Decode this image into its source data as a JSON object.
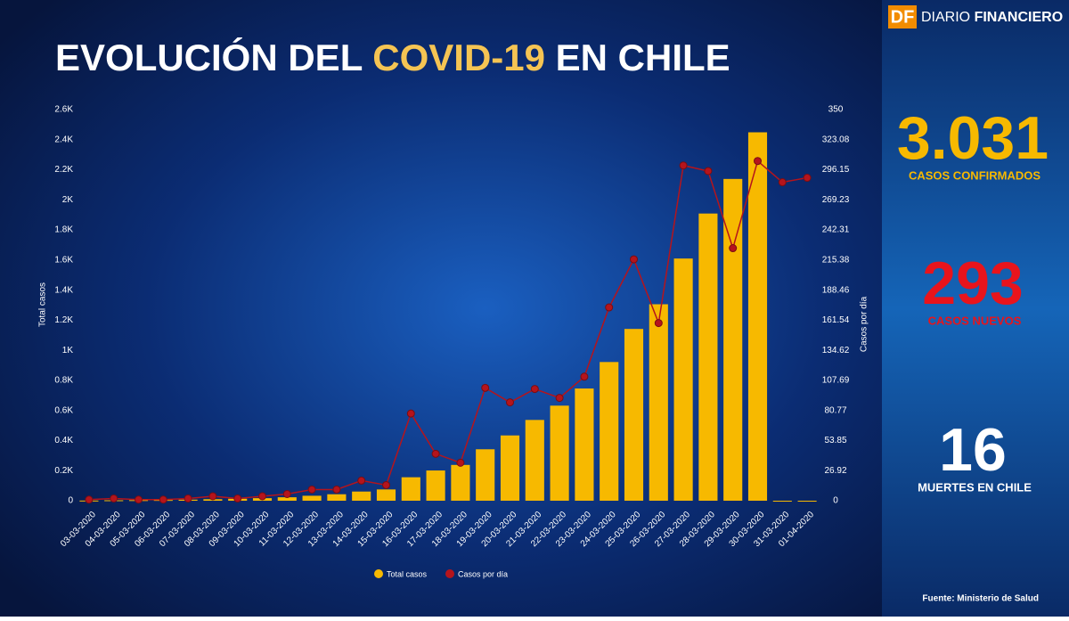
{
  "chart_data": {
    "type": "bar_line",
    "title": [
      "EVOLUCIÓN DEL ",
      "COVID-19",
      " EN CHILE"
    ],
    "y_label": "Total casos",
    "y2_label": "Casos por día",
    "categories": [
      "03-03-2020",
      "04-03-2020",
      "05-03-2020",
      "06-03-2020",
      "07-03-2020",
      "08-03-2020",
      "09-03-2020",
      "10-03-2020",
      "11-03-2020",
      "12-03-2020",
      "13-03-2020",
      "14-03-2020",
      "15-03-2020",
      "16-03-2020",
      "17-03-2020",
      "18-03-2020",
      "19-03-2020",
      "20-03-2020",
      "21-03-2020",
      "22-03-2020",
      "23-03-2020",
      "24-03-2020",
      "25-03-2020",
      "26-03-2020",
      "27-03-2020",
      "28-03-2020",
      "29-03-2020",
      "30-03-2020",
      "31-03-2020",
      "01-04-2020"
    ],
    "series": [
      {
        "name": "Total casos",
        "type": "bar",
        "color": "#f7b900",
        "values": [
          1,
          3,
          4,
          5,
          7,
          10,
          13,
          17,
          23,
          33,
          43,
          61,
          75,
          156,
          201,
          238,
          342,
          434,
          537,
          632,
          746,
          922,
          1142,
          1306,
          1610,
          1909,
          2139,
          2449,
          0,
          0
        ]
      },
      {
        "name": "Casos por día",
        "type": "line",
        "axis": "y2",
        "color": "#b5141c",
        "values": [
          1,
          2,
          1,
          1,
          2,
          4,
          2,
          4,
          6,
          10,
          10,
          18,
          14,
          78,
          42,
          34,
          101,
          88,
          100,
          92,
          111,
          173,
          216,
          159,
          300,
          295,
          226,
          304,
          285,
          289
        ]
      }
    ],
    "ylim": [
      0,
      2600
    ],
    "yticks": [
      0,
      {
        "value": 200,
        "label": "0.2K"
      },
      {
        "value": 400,
        "label": "0.4K"
      },
      {
        "value": 600,
        "label": "0.6K"
      },
      {
        "value": 800,
        "label": "0.8K"
      },
      {
        "value": 1000,
        "label": "1K"
      },
      {
        "value": 1200,
        "label": "1.2K"
      },
      {
        "value": 1400,
        "label": "1.4K"
      },
      {
        "value": 1600,
        "label": "1.6K"
      },
      {
        "value": 1800,
        "label": "1.8K"
      },
      {
        "value": 2000,
        "label": "2K"
      },
      {
        "value": 2200,
        "label": "2.2K"
      },
      {
        "value": 2400,
        "label": "2.4K"
      },
      {
        "value": 2600,
        "label": "2.6K"
      }
    ],
    "y2lim": [
      0,
      350
    ],
    "y2ticks": [
      0,
      26.92,
      53.85,
      80.77,
      107.69,
      134.62,
      161.54,
      188.46,
      215.38,
      242.31,
      269.23,
      296.15,
      323.08,
      350
    ],
    "grid": false
  },
  "brand": {
    "logo": "DF",
    "name": "DIARIO",
    "name_bold": "FINANCIERO"
  },
  "stats": [
    {
      "value": "3.031",
      "label": "CASOS CONFIRMADOS",
      "color": "#f7b900"
    },
    {
      "value": "293",
      "label": "CASOS NUEVOS",
      "color": "#e8141c"
    },
    {
      "value": "16",
      "label": "MUERTES EN CHILE",
      "color": "#ffffff"
    }
  ],
  "source": "Fuente: Ministerio de Salud"
}
